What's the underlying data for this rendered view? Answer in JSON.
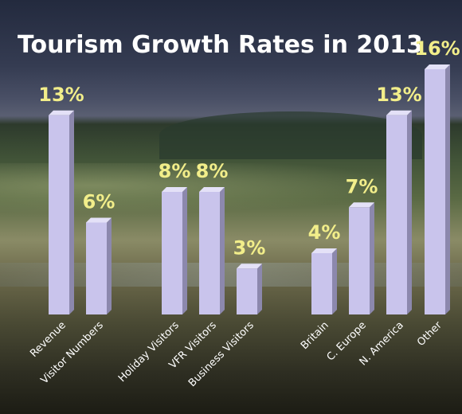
{
  "chart_data": {
    "type": "bar",
    "title": "Tourism Growth Rates in 2013",
    "categories": [
      "Revenue",
      "Visitor Numbers",
      "Holiday Visitors",
      "VFR Visitors",
      "Business Visitors",
      "Britain",
      "C. Europe",
      "N. America",
      "Other"
    ],
    "values": [
      13,
      6,
      8,
      8,
      3,
      4,
      7,
      13,
      16
    ],
    "value_labels": [
      "13%",
      "6%",
      "8%",
      "8%",
      "3%",
      "4%",
      "7%",
      "13%",
      "16%"
    ],
    "unit": "%",
    "ylim": [
      0,
      16
    ],
    "grid": false,
    "legend": "none",
    "colors": {
      "bar_front": "#c9c4ec",
      "bar_side": "#8c88ad",
      "bar_top": "#e4e1f7",
      "value_label": "#f2ee8a",
      "text": "#ffffff"
    }
  }
}
